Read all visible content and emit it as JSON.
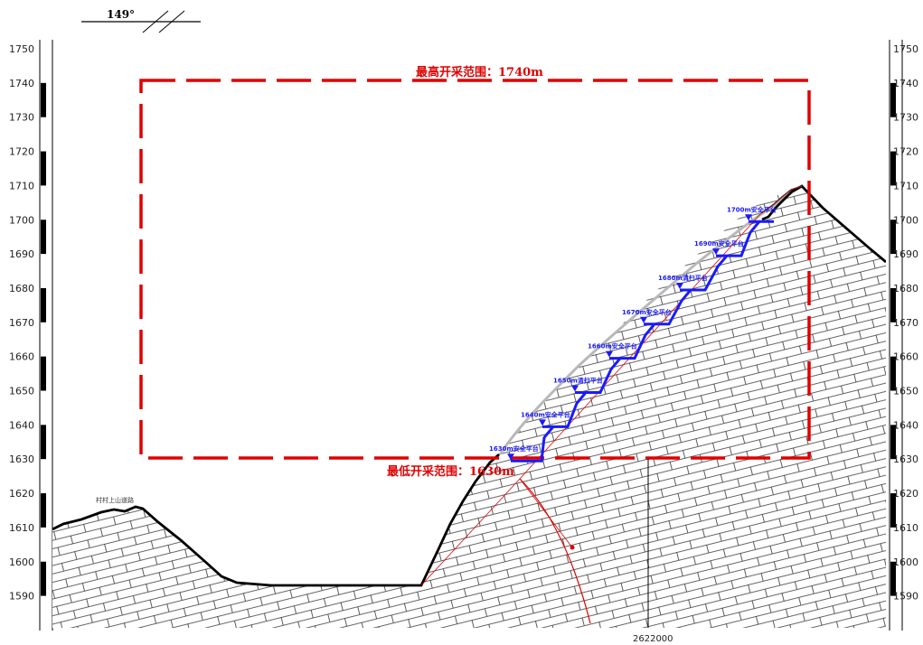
{
  "direction": {
    "angle_label": "149°"
  },
  "scale": {
    "ticks": [
      1750,
      1740,
      1730,
      1720,
      1710,
      1700,
      1690,
      1680,
      1670,
      1660,
      1650,
      1640,
      1630,
      1620,
      1610,
      1600,
      1590
    ]
  },
  "pit": {
    "top_label": "最高开采范围：1740m",
    "bottom_label": "最低开采范围：1630m",
    "top_elevation": 1740,
    "bottom_elevation": 1630
  },
  "road_label": "村村上山道路",
  "x_coordinate_label": "2622000",
  "benches": [
    {
      "label": "1630m安全平台",
      "elevation": 1630
    },
    {
      "label": "1640m安全平台",
      "elevation": 1640
    },
    {
      "label": "1650m清扫平台",
      "elevation": 1650
    },
    {
      "label": "1660m安全平台",
      "elevation": 1660
    },
    {
      "label": "1670m安全平台",
      "elevation": 1670
    },
    {
      "label": "1680m清扫平台",
      "elevation": 1680
    },
    {
      "label": "1690m安全平台",
      "elevation": 1690
    },
    {
      "label": "1700m安全平台",
      "elevation": 1700
    }
  ],
  "colors": {
    "pit_boundary": "#e00000",
    "bench": "#1a1aff",
    "terrain": "#000000",
    "original_surface": "#b8b8b8",
    "slip_arc": "#e00000"
  }
}
